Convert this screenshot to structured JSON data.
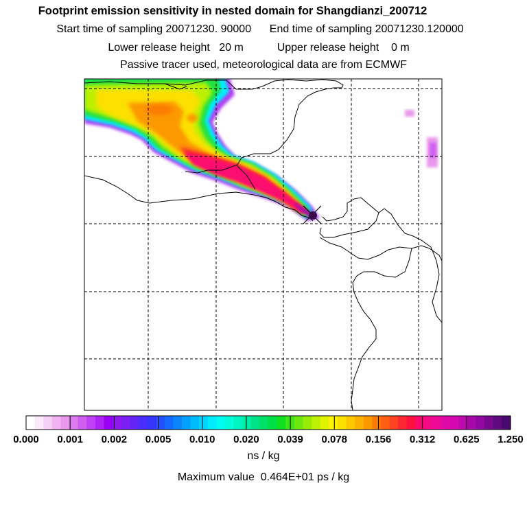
{
  "chart_data": {
    "type": "heatmap",
    "title": "Footprint emission sensitivity in nested domain for Shangdianzi_200712",
    "sampling": {
      "start_label": "Start time of sampling",
      "start_value": "20071230. 90000",
      "end_label": "End time of sampling",
      "end_value": "20071230.120000"
    },
    "release": {
      "lower_label": "Lower release height",
      "lower_value": "20 m",
      "upper_label": "Upper release height",
      "upper_value": "0 m"
    },
    "tracer_note": "Passive tracer used, meteorological data are from ECMWF",
    "colorbar": {
      "unit": "ns / kg",
      "tick_labels": [
        "0.000",
        "0.001",
        "0.002",
        "0.005",
        "0.010",
        "0.020",
        "0.039",
        "0.078",
        "0.156",
        "0.312",
        "0.625",
        "1.250"
      ],
      "colors": [
        "#ffffff",
        "#fbe8fb",
        "#f6d0f6",
        "#f0b4f0",
        "#e898ec",
        "#dc7cee",
        "#d05ef0",
        "#c040f4",
        "#ae22f6",
        "#9a00f6",
        "#8e18f0",
        "#7a1ef4",
        "#6424f8",
        "#4a2cfc",
        "#3434fc",
        "#2450fc",
        "#1468fc",
        "#0c84fc",
        "#04a0fc",
        "#00bcfc",
        "#00d4fc",
        "#00ecfc",
        "#00fcf0",
        "#00fcd8",
        "#00f4c0",
        "#00eca4",
        "#00e488",
        "#00e064",
        "#00e044",
        "#10e020",
        "#40e418",
        "#6ce810",
        "#94ec08",
        "#bcf004",
        "#e0f400",
        "#fcf400",
        "#fce000",
        "#fcc800",
        "#fcb000",
        "#fc9800",
        "#fc7c00",
        "#fc6010",
        "#fc4420",
        "#fc2830",
        "#fc1040",
        "#fc0870",
        "#f40888",
        "#ec0898",
        "#e008a4",
        "#d408b0",
        "#c008b0",
        "#a808a8",
        "#9008a0",
        "#780890",
        "#600880",
        "#480870"
      ],
      "block_index_per_tick": [
        0,
        10,
        20,
        30,
        40,
        50
      ]
    },
    "max_value": {
      "label": "Maximum value",
      "value": "0.464E+01",
      "unit": "ps / kg"
    },
    "receptor": {
      "name": "Shangdianzi"
    },
    "grid": true,
    "legend_position": "bottom"
  }
}
